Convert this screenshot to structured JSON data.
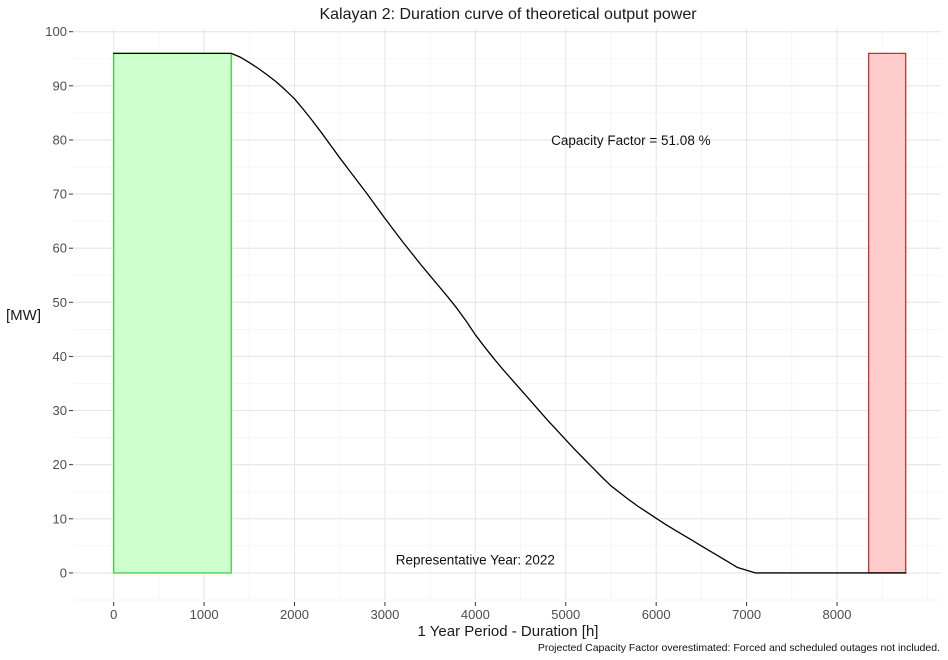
{
  "chart_data": {
    "type": "line",
    "title": "Kalayan 2: Duration curve of theoretical output power",
    "xlabel": "1 Year Period - Duration [h]",
    "ylabel": "[MW]",
    "caption": "Projected Capacity Factor overestimated: Forced and scheduled outages not included.",
    "xlim": [
      -450,
      9150
    ],
    "ylim": [
      -5,
      100.5
    ],
    "x_ticks": [
      0,
      1000,
      2000,
      3000,
      4000,
      5000,
      6000,
      7000,
      8000
    ],
    "y_ticks": [
      0,
      10,
      20,
      30,
      40,
      50,
      60,
      70,
      80,
      90,
      100
    ],
    "grid": true,
    "annotations": [
      {
        "name": "capacity-factor",
        "text": "Capacity Factor = 51.08 %",
        "x": 5720,
        "y": 80
      },
      {
        "name": "representative-year",
        "text": "Representative Year: 2022",
        "x": 4000,
        "y": 2.5
      }
    ],
    "regions": [
      {
        "name": "green-region",
        "x0": 0,
        "x1": 1300,
        "y0": 0,
        "y1": 96,
        "fill": "#ccffcc",
        "stroke": "#33cc33"
      },
      {
        "name": "red-region",
        "x0": 8350,
        "x1": 8760,
        "y0": 0,
        "y1": 96,
        "fill": "#ffcccc",
        "stroke": "#cc2222"
      }
    ],
    "series": [
      {
        "color": "#000000",
        "x": [
          0,
          1300,
          1400,
          1500,
          1600,
          1700,
          1800,
          1900,
          2000,
          2100,
          2200,
          2300,
          2400,
          2500,
          2600,
          2700,
          2800,
          2900,
          3000,
          3100,
          3200,
          3300,
          3400,
          3500,
          3600,
          3700,
          3800,
          3900,
          4000,
          4100,
          4200,
          4300,
          4400,
          4500,
          4600,
          4700,
          4800,
          4900,
          5000,
          5100,
          5200,
          5300,
          5400,
          5500,
          5600,
          5700,
          5800,
          5900,
          6000,
          6100,
          6200,
          6300,
          6400,
          6500,
          6600,
          6700,
          6800,
          6900,
          7000,
          7100,
          7200,
          7300,
          7400,
          7500,
          7600,
          7700,
          7800,
          7900,
          8000,
          8100,
          8200,
          8300,
          8350,
          8760
        ],
        "y": [
          96,
          96,
          95.3,
          94.3,
          93.2,
          92.0,
          90.7,
          89.2,
          87.6,
          85.6,
          83.5,
          81.3,
          79.0,
          76.7,
          74.5,
          72.3,
          70.1,
          67.8,
          65.5,
          63.3,
          61.1,
          59.0,
          56.9,
          54.9,
          52.9,
          50.9,
          48.8,
          46.5,
          44.0,
          41.8,
          39.7,
          37.7,
          35.8,
          33.9,
          32.0,
          30.1,
          28.2,
          26.4,
          24.6,
          22.8,
          21.1,
          19.4,
          17.7,
          16.1,
          14.8,
          13.5,
          12.3,
          11.2,
          10.1,
          9.0,
          8.0,
          7.0,
          6.0,
          5.0,
          4.0,
          3.0,
          2.0,
          1.0,
          0.5,
          0.0,
          0.0,
          0.0,
          0.0,
          0.0,
          0.0,
          0.0,
          0.0,
          0.0,
          0.0,
          0.0,
          0.0,
          0.0,
          0.0,
          0.0
        ]
      }
    ]
  }
}
